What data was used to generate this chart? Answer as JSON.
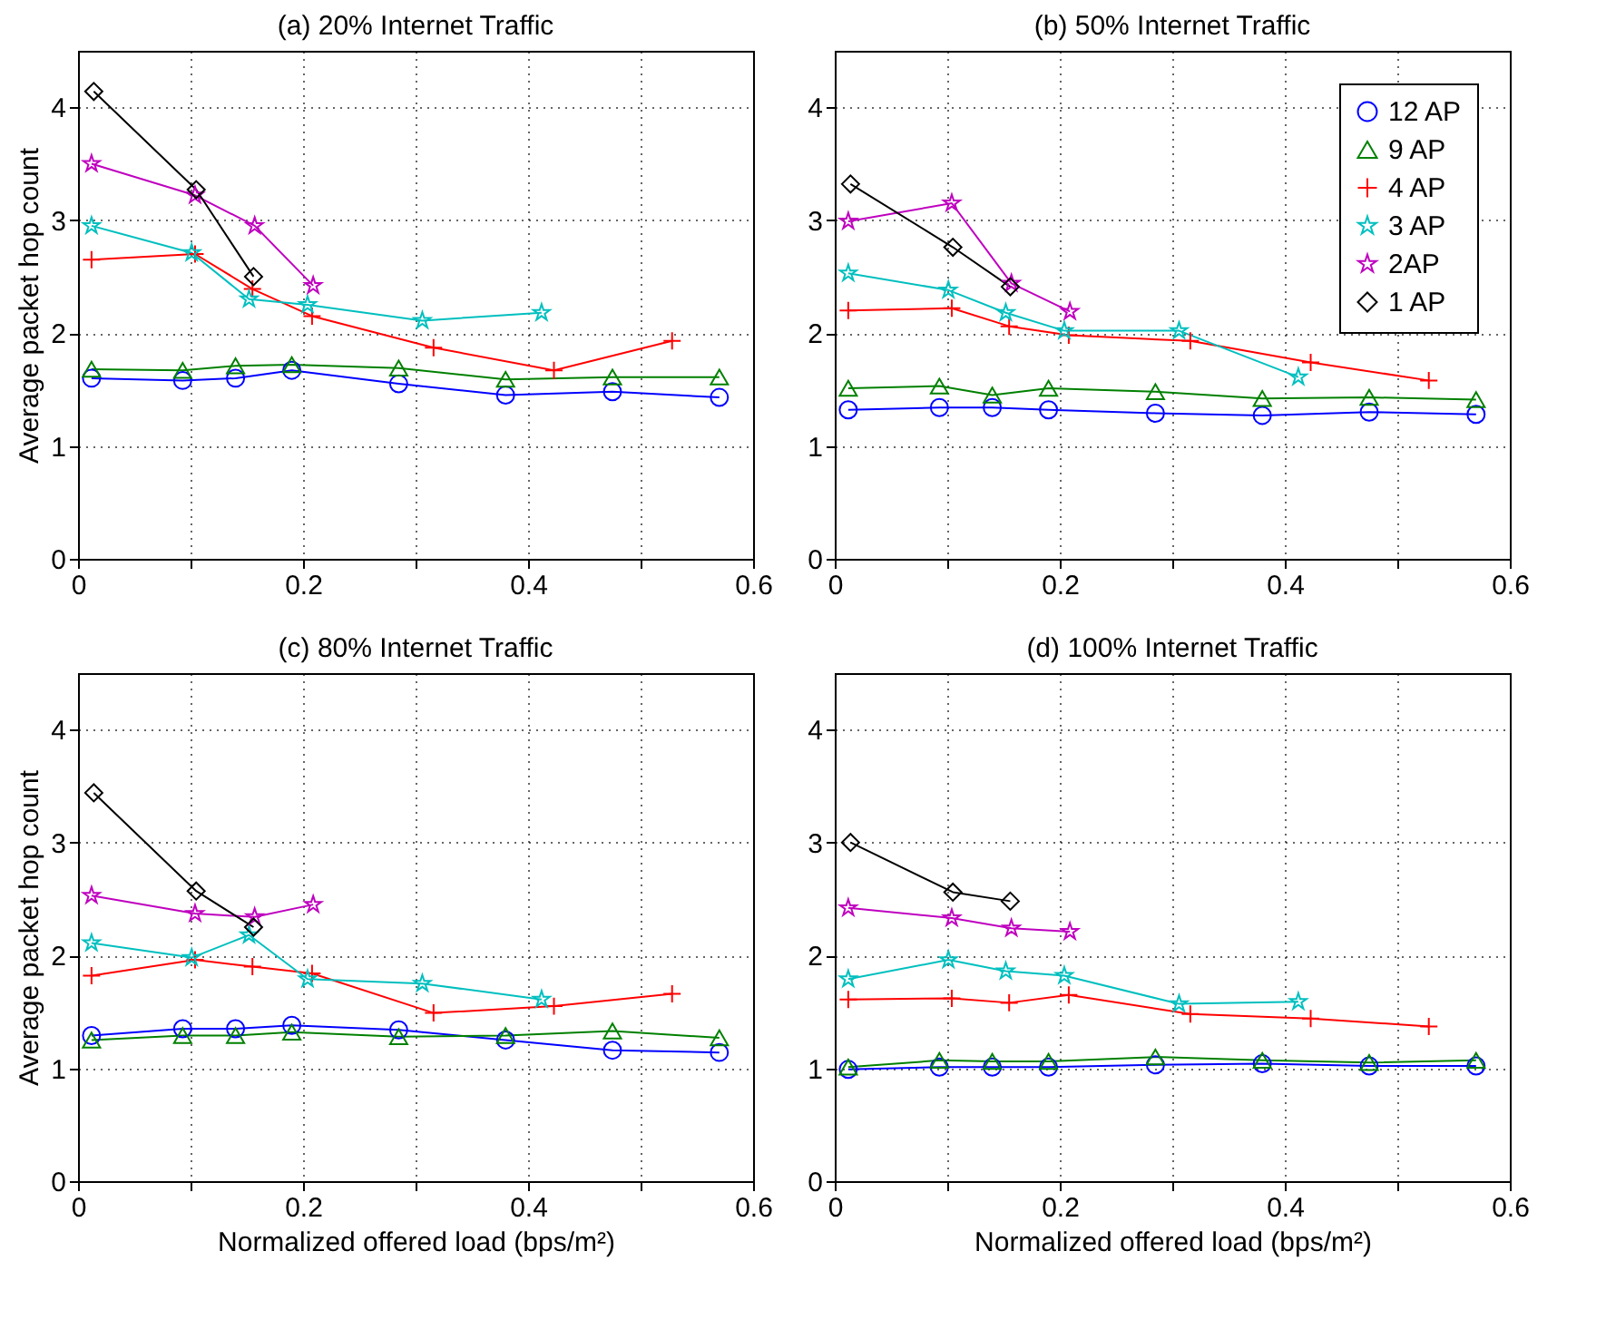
{
  "chart_data": [
    {
      "type": "line",
      "title": "(a) 20% Internet Traffic",
      "ylabel": "Average packet hop count",
      "xlim": [
        0,
        0.6
      ],
      "ylim": [
        0,
        4.5
      ],
      "xticks": [
        0,
        {
          "value": 0.1,
          "label": null
        },
        0.2,
        {
          "value": 0.3,
          "label": null
        },
        0.4,
        {
          "value": 0.5,
          "label": null
        },
        0.6
      ],
      "yticks": [
        0,
        1,
        2,
        3,
        4
      ],
      "grid": true,
      "series": [
        {
          "color": "#0000ff",
          "marker": "circle",
          "x": [
            0.012,
            0.093,
            0.14,
            0.19,
            0.285,
            0.38,
            0.475,
            0.57
          ],
          "values": [
            1.6,
            1.58,
            1.6,
            1.67,
            1.55,
            1.45,
            1.48,
            1.43
          ]
        },
        {
          "color": "#008000",
          "marker": "triangle",
          "x": [
            0.012,
            0.093,
            0.14,
            0.19,
            0.285,
            0.38,
            0.475,
            0.57
          ],
          "values": [
            1.68,
            1.67,
            1.71,
            1.72,
            1.69,
            1.59,
            1.61,
            1.61
          ]
        },
        {
          "color": "#ff0000",
          "marker": "cross",
          "x": [
            0.012,
            0.104,
            0.155,
            0.208,
            0.316,
            0.423,
            0.528
          ],
          "values": [
            2.65,
            2.7,
            2.39,
            2.15,
            1.87,
            1.67,
            1.93
          ]
        },
        {
          "color": "#00bfbf",
          "marker": "star",
          "x": [
            0.012,
            0.101,
            0.152,
            0.204,
            0.306,
            0.412
          ],
          "values": [
            2.95,
            2.71,
            2.3,
            2.25,
            2.11,
            2.18
          ]
        },
        {
          "color": "#bf00bf",
          "marker": "star",
          "x": [
            0.012,
            0.104,
            0.157,
            0.209
          ],
          "values": [
            3.5,
            3.22,
            2.95,
            2.42
          ]
        },
        {
          "color": "#000000",
          "marker": "diamond",
          "x": [
            0.014,
            0.105,
            0.156
          ],
          "values": [
            4.14,
            3.27,
            2.5
          ]
        }
      ]
    },
    {
      "type": "line",
      "title": "(b) 50% Internet Traffic",
      "xlim": [
        0,
        0.6
      ],
      "ylim": [
        0,
        4.5
      ],
      "xticks": [
        0,
        {
          "value": 0.1,
          "label": null
        },
        0.2,
        {
          "value": 0.3,
          "label": null
        },
        0.4,
        {
          "value": 0.5,
          "label": null
        },
        0.6
      ],
      "yticks": [
        0,
        1,
        2,
        3,
        4
      ],
      "grid": true,
      "legend": "top right",
      "series": [
        {
          "name": "12 AP",
          "color": "#0000ff",
          "marker": "circle",
          "x": [
            0.012,
            0.093,
            0.14,
            0.19,
            0.285,
            0.38,
            0.475,
            0.57
          ],
          "values": [
            1.32,
            1.34,
            1.34,
            1.32,
            1.29,
            1.27,
            1.3,
            1.28
          ]
        },
        {
          "name": "9 AP",
          "color": "#008000",
          "marker": "triangle",
          "x": [
            0.012,
            0.093,
            0.14,
            0.19,
            0.285,
            0.38,
            0.475,
            0.57
          ],
          "values": [
            1.51,
            1.53,
            1.45,
            1.51,
            1.48,
            1.42,
            1.43,
            1.41
          ]
        },
        {
          "name": "4 AP",
          "color": "#ff0000",
          "marker": "cross",
          "x": [
            0.012,
            0.104,
            0.155,
            0.208,
            0.316,
            0.423,
            0.528
          ],
          "values": [
            2.2,
            2.22,
            2.06,
            1.98,
            1.93,
            1.74,
            1.58
          ]
        },
        {
          "name": "3 AP",
          "color": "#00bfbf",
          "marker": "star",
          "x": [
            0.012,
            0.101,
            0.152,
            0.204,
            0.306,
            0.412
          ],
          "values": [
            2.53,
            2.38,
            2.18,
            2.02,
            2.02,
            1.61
          ]
        },
        {
          "name": "2AP",
          "color": "#bf00bf",
          "marker": "star",
          "x": [
            0.012,
            0.104,
            0.157,
            0.209
          ],
          "values": [
            2.99,
            3.15,
            2.44,
            2.19
          ]
        },
        {
          "name": "1 AP",
          "color": "#000000",
          "marker": "diamond",
          "x": [
            0.014,
            0.105,
            0.156
          ],
          "values": [
            3.32,
            2.76,
            2.41
          ]
        }
      ]
    },
    {
      "type": "line",
      "title": "(c) 80% Internet Traffic",
      "xlabel": "Normalized offered load (bps/m²)",
      "ylabel": "Average packet hop count",
      "xlim": [
        0,
        0.6
      ],
      "ylim": [
        0,
        4.5
      ],
      "xticks": [
        0,
        {
          "value": 0.1,
          "label": null
        },
        0.2,
        {
          "value": 0.3,
          "label": null
        },
        0.4,
        {
          "value": 0.5,
          "label": null
        },
        0.6
      ],
      "yticks": [
        0,
        1,
        2,
        3,
        4
      ],
      "grid": true,
      "series": [
        {
          "color": "#0000ff",
          "marker": "circle",
          "x": [
            0.012,
            0.093,
            0.14,
            0.19,
            0.285,
            0.38,
            0.475,
            0.57
          ],
          "values": [
            1.29,
            1.35,
            1.35,
            1.38,
            1.34,
            1.25,
            1.16,
            1.14
          ]
        },
        {
          "color": "#008000",
          "marker": "triangle",
          "x": [
            0.012,
            0.093,
            0.14,
            0.19,
            0.285,
            0.38,
            0.475,
            0.57
          ],
          "values": [
            1.25,
            1.29,
            1.29,
            1.32,
            1.28,
            1.29,
            1.33,
            1.27
          ]
        },
        {
          "color": "#ff0000",
          "marker": "cross",
          "x": [
            0.012,
            0.104,
            0.155,
            0.208,
            0.316,
            0.423,
            0.528
          ],
          "values": [
            1.82,
            1.96,
            1.9,
            1.84,
            1.49,
            1.55,
            1.66
          ]
        },
        {
          "color": "#00bfbf",
          "marker": "star",
          "x": [
            0.012,
            0.101,
            0.152,
            0.204,
            0.306,
            0.412
          ],
          "values": [
            2.11,
            1.98,
            2.18,
            1.79,
            1.75,
            1.61
          ]
        },
        {
          "color": "#bf00bf",
          "marker": "star",
          "x": [
            0.012,
            0.104,
            0.157,
            0.209
          ],
          "values": [
            2.53,
            2.37,
            2.34,
            2.45
          ]
        },
        {
          "color": "#000000",
          "marker": "diamond",
          "x": [
            0.014,
            0.105,
            0.156
          ],
          "values": [
            3.44,
            2.57,
            2.25
          ]
        }
      ]
    },
    {
      "type": "line",
      "title": "(d) 100% Internet Traffic",
      "xlabel": "Normalized offered load (bps/m²)",
      "xlim": [
        0,
        0.6
      ],
      "ylim": [
        0,
        4.5
      ],
      "xticks": [
        0,
        {
          "value": 0.1,
          "label": null
        },
        0.2,
        {
          "value": 0.3,
          "label": null
        },
        0.4,
        {
          "value": 0.5,
          "label": null
        },
        0.6
      ],
      "yticks": [
        0,
        1,
        2,
        3,
        4
      ],
      "grid": true,
      "series": [
        {
          "color": "#0000ff",
          "marker": "circle",
          "x": [
            0.012,
            0.093,
            0.14,
            0.19,
            0.285,
            0.38,
            0.475,
            0.57
          ],
          "values": [
            0.99,
            1.01,
            1.01,
            1.01,
            1.03,
            1.04,
            1.02,
            1.02
          ]
        },
        {
          "color": "#008000",
          "marker": "triangle",
          "x": [
            0.012,
            0.093,
            0.14,
            0.19,
            0.285,
            0.38,
            0.475,
            0.57
          ],
          "values": [
            1.01,
            1.07,
            1.06,
            1.06,
            1.1,
            1.07,
            1.05,
            1.07
          ]
        },
        {
          "color": "#ff0000",
          "marker": "cross",
          "x": [
            0.012,
            0.104,
            0.155,
            0.208,
            0.316,
            0.423,
            0.528
          ],
          "values": [
            1.61,
            1.62,
            1.58,
            1.65,
            1.48,
            1.44,
            1.37
          ]
        },
        {
          "color": "#00bfbf",
          "marker": "star",
          "x": [
            0.012,
            0.101,
            0.152,
            0.204,
            0.306,
            0.412
          ],
          "values": [
            1.79,
            1.96,
            1.86,
            1.82,
            1.57,
            1.59
          ]
        },
        {
          "color": "#bf00bf",
          "marker": "star",
          "x": [
            0.012,
            0.104,
            0.157,
            0.209
          ],
          "values": [
            2.42,
            2.33,
            2.24,
            2.21
          ]
        },
        {
          "color": "#000000",
          "marker": "diamond",
          "x": [
            0.014,
            0.105,
            0.156
          ],
          "values": [
            3.0,
            2.56,
            2.48
          ]
        }
      ]
    }
  ]
}
